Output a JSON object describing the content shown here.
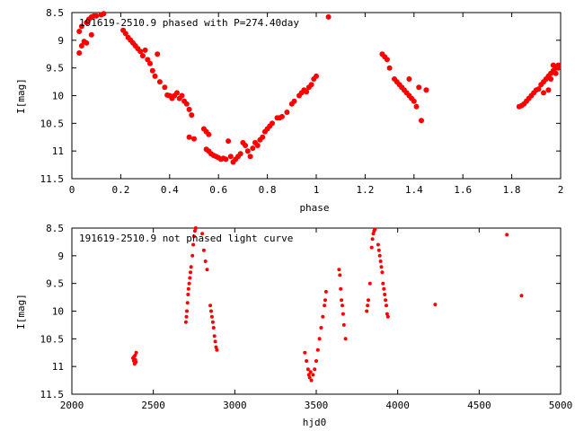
{
  "chart_data": [
    {
      "type": "scatter",
      "title": "191619-2510.9 phased with P=274.40day",
      "xlabel": "phase",
      "ylabel": "I[mag]",
      "xlim": [
        0,
        2
      ],
      "ylim": [
        11.5,
        8.5
      ],
      "y_inverted": true,
      "xticks": [
        0,
        0.2,
        0.4,
        0.6,
        0.8,
        1,
        1.2,
        1.4,
        1.6,
        1.8,
        2
      ],
      "xtick_labels": [
        "0",
        "0.2",
        "0.4",
        "0.6",
        "0.8",
        "1",
        "1.2",
        "1.4",
        "1.6",
        "1.8",
        "2"
      ],
      "yticks": [
        8.5,
        9,
        9.5,
        10,
        10.5,
        11,
        11.5
      ],
      "ytick_labels": [
        "8.5",
        "9",
        "9.5",
        "10",
        "10.5",
        "11",
        "11.5"
      ],
      "grid": false,
      "marker_color": "#ff0000",
      "points": [
        [
          0.03,
          9.23
        ],
        [
          0.04,
          9.1
        ],
        [
          0.05,
          9.02
        ],
        [
          0.03,
          8.84
        ],
        [
          0.04,
          8.75
        ],
        [
          0.06,
          8.68
        ],
        [
          0.07,
          8.62
        ],
        [
          0.08,
          8.58
        ],
        [
          0.09,
          8.56
        ],
        [
          0.1,
          8.56
        ],
        [
          0.12,
          8.54
        ],
        [
          0.13,
          8.52
        ],
        [
          0.08,
          8.9
        ],
        [
          0.06,
          9.05
        ],
        [
          0.21,
          8.82
        ],
        [
          0.22,
          8.88
        ],
        [
          0.23,
          8.95
        ],
        [
          0.24,
          9.0
        ],
        [
          0.25,
          9.05
        ],
        [
          0.26,
          9.1
        ],
        [
          0.27,
          9.15
        ],
        [
          0.28,
          9.2
        ],
        [
          0.29,
          9.28
        ],
        [
          0.3,
          9.18
        ],
        [
          0.31,
          9.35
        ],
        [
          0.32,
          9.42
        ],
        [
          0.33,
          9.55
        ],
        [
          0.34,
          9.65
        ],
        [
          0.36,
          9.75
        ],
        [
          0.35,
          9.25
        ],
        [
          0.38,
          9.85
        ],
        [
          0.39,
          9.99
        ],
        [
          0.4,
          10.0
        ],
        [
          0.41,
          10.05
        ],
        [
          0.42,
          10.0
        ],
        [
          0.43,
          9.95
        ],
        [
          0.44,
          10.05
        ],
        [
          0.45,
          10.0
        ],
        [
          0.46,
          10.1
        ],
        [
          0.47,
          10.15
        ],
        [
          0.48,
          10.25
        ],
        [
          0.49,
          10.35
        ],
        [
          0.48,
          10.75
        ],
        [
          0.5,
          10.78
        ],
        [
          0.54,
          10.6
        ],
        [
          0.55,
          10.65
        ],
        [
          0.56,
          10.7
        ],
        [
          0.55,
          10.97
        ],
        [
          0.56,
          11.0
        ],
        [
          0.57,
          11.05
        ],
        [
          0.58,
          11.08
        ],
        [
          0.59,
          11.1
        ],
        [
          0.6,
          11.12
        ],
        [
          0.61,
          11.15
        ],
        [
          0.62,
          11.13
        ],
        [
          0.63,
          11.15
        ],
        [
          0.64,
          10.82
        ],
        [
          0.65,
          11.1
        ],
        [
          0.66,
          11.2
        ],
        [
          0.67,
          11.15
        ],
        [
          0.68,
          11.1
        ],
        [
          0.69,
          11.05
        ],
        [
          0.7,
          10.85
        ],
        [
          0.71,
          10.9
        ],
        [
          0.72,
          11.0
        ],
        [
          0.73,
          11.1
        ],
        [
          0.74,
          10.95
        ],
        [
          0.75,
          10.85
        ],
        [
          0.76,
          10.9
        ],
        [
          0.77,
          10.8
        ],
        [
          0.78,
          10.75
        ],
        [
          0.79,
          10.65
        ],
        [
          0.8,
          10.6
        ],
        [
          0.81,
          10.55
        ],
        [
          0.82,
          10.5
        ],
        [
          0.84,
          10.4
        ],
        [
          0.85,
          10.4
        ],
        [
          0.86,
          10.38
        ],
        [
          0.88,
          10.3
        ],
        [
          0.9,
          10.15
        ],
        [
          0.91,
          10.1
        ],
        [
          0.93,
          10.0
        ],
        [
          0.94,
          9.95
        ],
        [
          0.95,
          9.9
        ],
        [
          0.96,
          9.93
        ],
        [
          0.97,
          9.85
        ],
        [
          0.98,
          9.8
        ],
        [
          0.99,
          9.7
        ],
        [
          1.0,
          9.65
        ],
        [
          1.05,
          8.58
        ],
        [
          1.27,
          9.25
        ],
        [
          1.28,
          9.3
        ],
        [
          1.29,
          9.35
        ],
        [
          1.3,
          9.5
        ],
        [
          1.32,
          9.7
        ],
        [
          1.33,
          9.75
        ],
        [
          1.34,
          9.8
        ],
        [
          1.35,
          9.85
        ],
        [
          1.36,
          9.9
        ],
        [
          1.37,
          9.95
        ],
        [
          1.38,
          10.0
        ],
        [
          1.39,
          10.05
        ],
        [
          1.4,
          10.1
        ],
        [
          1.41,
          10.2
        ],
        [
          1.38,
          9.7
        ],
        [
          1.42,
          9.85
        ],
        [
          1.43,
          10.45
        ],
        [
          1.45,
          9.9
        ],
        [
          1.83,
          10.2
        ],
        [
          1.84,
          10.18
        ],
        [
          1.85,
          10.15
        ],
        [
          1.86,
          10.1
        ],
        [
          1.87,
          10.05
        ],
        [
          1.88,
          10.0
        ],
        [
          1.89,
          9.95
        ],
        [
          1.9,
          9.9
        ],
        [
          1.91,
          9.88
        ],
        [
          1.92,
          9.8
        ],
        [
          1.93,
          9.75
        ],
        [
          1.94,
          9.7
        ],
        [
          1.95,
          9.65
        ],
        [
          1.96,
          9.6
        ],
        [
          1.97,
          9.55
        ],
        [
          1.98,
          9.5
        ],
        [
          1.99,
          9.45
        ],
        [
          1.95,
          9.9
        ],
        [
          1.93,
          9.95
        ],
        [
          1.96,
          9.7
        ],
        [
          1.97,
          9.45
        ],
        [
          1.98,
          9.6
        ],
        [
          1.99,
          9.5
        ]
      ]
    },
    {
      "type": "scatter",
      "title": "191619-2510.9 not phased light curve",
      "xlabel": "hjd0",
      "ylabel": "I[mag]",
      "xlim": [
        2000,
        5000
      ],
      "ylim": [
        11.5,
        8.5
      ],
      "y_inverted": true,
      "xticks": [
        2000,
        2500,
        3000,
        3500,
        4000,
        4500,
        5000
      ],
      "xtick_labels": [
        "2000",
        "2500",
        "3000",
        "3500",
        "4000",
        "4500",
        "5000"
      ],
      "yticks": [
        8.5,
        9,
        9.5,
        10,
        10.5,
        11,
        11.5
      ],
      "ytick_labels": [
        "8.5",
        "9",
        "9.5",
        "10",
        "10.5",
        "11",
        "11.5"
      ],
      "grid": false,
      "marker_color": "#ff0000",
      "points": [
        [
          2375,
          10.85
        ],
        [
          2380,
          10.9
        ],
        [
          2382,
          10.82
        ],
        [
          2385,
          10.95
        ],
        [
          2388,
          10.8
        ],
        [
          2390,
          10.88
        ],
        [
          2395,
          10.75
        ],
        [
          2392,
          10.92
        ],
        [
          2700,
          10.2
        ],
        [
          2703,
          10.1
        ],
        [
          2706,
          10.0
        ],
        [
          2710,
          9.85
        ],
        [
          2713,
          9.7
        ],
        [
          2716,
          9.6
        ],
        [
          2720,
          9.5
        ],
        [
          2724,
          9.4
        ],
        [
          2728,
          9.3
        ],
        [
          2732,
          9.2
        ],
        [
          2740,
          9.0
        ],
        [
          2745,
          8.8
        ],
        [
          2750,
          8.65
        ],
        [
          2755,
          8.55
        ],
        [
          2760,
          8.5
        ],
        [
          2800,
          8.6
        ],
        [
          2810,
          8.9
        ],
        [
          2820,
          9.1
        ],
        [
          2830,
          9.25
        ],
        [
          2850,
          9.9
        ],
        [
          2855,
          10.0
        ],
        [
          2860,
          10.1
        ],
        [
          2865,
          10.2
        ],
        [
          2870,
          10.3
        ],
        [
          2875,
          10.45
        ],
        [
          2880,
          10.55
        ],
        [
          2885,
          10.65
        ],
        [
          2890,
          10.7
        ],
        [
          3430,
          10.75
        ],
        [
          3440,
          10.9
        ],
        [
          3450,
          11.05
        ],
        [
          3455,
          11.15
        ],
        [
          3460,
          11.2
        ],
        [
          3465,
          11.1
        ],
        [
          3470,
          11.25
        ],
        [
          3480,
          11.15
        ],
        [
          3490,
          11.05
        ],
        [
          3500,
          10.9
        ],
        [
          3510,
          10.7
        ],
        [
          3520,
          10.5
        ],
        [
          3530,
          10.3
        ],
        [
          3540,
          10.1
        ],
        [
          3550,
          9.9
        ],
        [
          3555,
          9.8
        ],
        [
          3560,
          9.65
        ],
        [
          3640,
          9.25
        ],
        [
          3645,
          9.35
        ],
        [
          3650,
          9.6
        ],
        [
          3655,
          9.8
        ],
        [
          3660,
          9.9
        ],
        [
          3665,
          10.05
        ],
        [
          3670,
          10.25
        ],
        [
          3680,
          10.5
        ],
        [
          3810,
          10.0
        ],
        [
          3815,
          9.9
        ],
        [
          3820,
          9.8
        ],
        [
          3830,
          9.5
        ],
        [
          3840,
          8.85
        ],
        [
          3845,
          8.7
        ],
        [
          3850,
          8.6
        ],
        [
          3855,
          8.55
        ],
        [
          3860,
          8.52
        ],
        [
          3880,
          8.8
        ],
        [
          3885,
          8.9
        ],
        [
          3890,
          9.0
        ],
        [
          3895,
          9.1
        ],
        [
          3900,
          9.2
        ],
        [
          3905,
          9.3
        ],
        [
          3910,
          9.5
        ],
        [
          3915,
          9.6
        ],
        [
          3920,
          9.7
        ],
        [
          3925,
          9.8
        ],
        [
          3930,
          9.9
        ],
        [
          3935,
          10.05
        ],
        [
          3940,
          10.1
        ],
        [
          4230,
          9.88
        ],
        [
          4670,
          8.62
        ],
        [
          4760,
          9.72
        ]
      ]
    }
  ]
}
